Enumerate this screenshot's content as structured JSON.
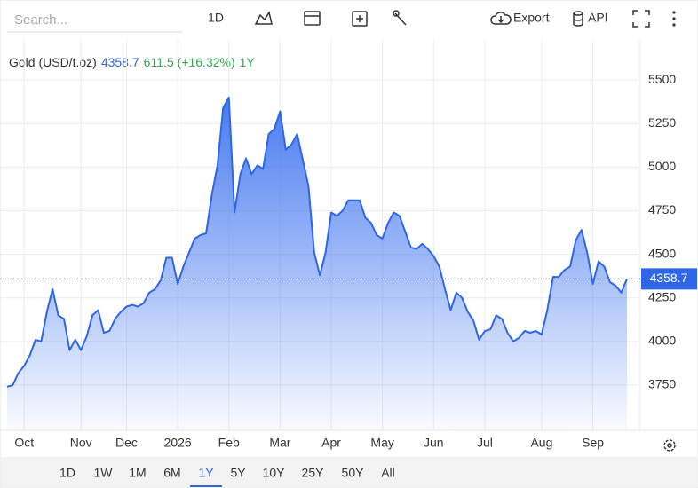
{
  "toolbar": {
    "search": "Search...",
    "interval": "1D",
    "export": "Export",
    "api": "API"
  },
  "chart_data": {
    "type": "area",
    "title": "Gold (USD/t.oz)",
    "change": "611.5",
    "change_pct": "(+16.32%)",
    "period": "1Y",
    "categories": [
      null,
      null,
      null,
      "Oct",
      null,
      null,
      null,
      null,
      null,
      null,
      null,
      null,
      null,
      "Nov",
      null,
      null,
      null,
      null,
      null,
      null,
      null,
      "Dec",
      null,
      null,
      null,
      null,
      null,
      null,
      null,
      null,
      "2026",
      null,
      null,
      null,
      null,
      null,
      null,
      null,
      null,
      "Feb",
      null,
      null,
      null,
      null,
      null,
      null,
      null,
      null,
      "Mar",
      null,
      null,
      null,
      null,
      null,
      null,
      null,
      null,
      "Apr",
      null,
      null,
      null,
      null,
      null,
      null,
      null,
      null,
      "May",
      null,
      null,
      null,
      null,
      null,
      null,
      null,
      null,
      "Jun",
      null,
      null,
      null,
      null,
      null,
      null,
      null,
      null,
      "Jul",
      null,
      null,
      null,
      null,
      null,
      null,
      null,
      null,
      null,
      "Aug",
      null,
      null,
      null,
      null,
      null,
      null,
      null,
      null,
      "Sep",
      null,
      null,
      null,
      null,
      null,
      null
    ],
    "series": [
      {
        "name": "Gold",
        "color": "#2f66e8",
        "values": [
          3740,
          3750,
          3820,
          3860,
          3920,
          4010,
          4000,
          4170,
          4300,
          4150,
          4130,
          3950,
          4010,
          3950,
          4030,
          4150,
          4180,
          4050,
          4060,
          4130,
          4170,
          4200,
          4210,
          4200,
          4220,
          4280,
          4300,
          4350,
          4480,
          4480,
          4330,
          4430,
          4510,
          4590,
          4610,
          4620,
          4840,
          5010,
          5340,
          5400,
          4740,
          4960,
          5050,
          4960,
          5010,
          4990,
          5190,
          5220,
          5320,
          5100,
          5130,
          5190,
          5040,
          4890,
          4510,
          4380,
          4510,
          4740,
          4720,
          4750,
          4810,
          4810,
          4810,
          4710,
          4680,
          4610,
          4590,
          4680,
          4740,
          4720,
          4630,
          4540,
          4530,
          4560,
          4530,
          4490,
          4430,
          4300,
          4180,
          4280,
          4250,
          4170,
          4120,
          4010,
          4060,
          4070,
          4150,
          4130,
          4050,
          4000,
          4020,
          4060,
          4050,
          4060,
          4040,
          4180,
          4370,
          4370,
          4410,
          4430,
          4580,
          4640,
          4510,
          4330,
          4460,
          4430,
          4340,
          4320,
          4280,
          4358.7
        ]
      }
    ],
    "ylim": [
      3490,
      5730
    ],
    "yticks": [
      3750,
      4000,
      4250,
      4500,
      4750,
      5000,
      5250,
      5500
    ],
    "grid": true
  },
  "ranges": [
    "1D",
    "1W",
    "1M",
    "6M",
    "1Y",
    "5Y",
    "10Y",
    "25Y",
    "50Y",
    "All"
  ],
  "active_range": 4
}
